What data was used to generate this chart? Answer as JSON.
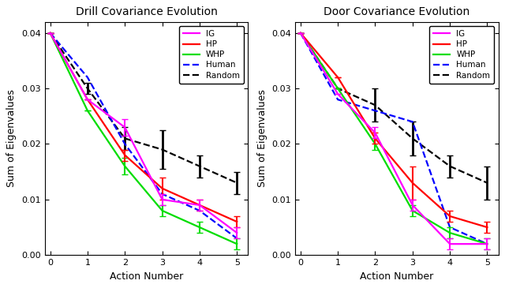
{
  "drill": {
    "title": "Drill Covariance Evolution",
    "IG": [
      0.04,
      0.028,
      0.023,
      0.01,
      0.009,
      0.004
    ],
    "HP": [
      0.04,
      0.028,
      0.018,
      0.012,
      0.009,
      0.006
    ],
    "WHP": [
      0.04,
      0.026,
      0.016,
      0.008,
      0.005,
      0.002
    ],
    "Human": [
      0.04,
      0.032,
      0.02,
      0.011,
      0.008,
      0.003
    ],
    "Random": [
      0.04,
      0.03,
      0.021,
      0.019,
      0.016,
      0.013
    ],
    "IG_err": [
      0,
      0,
      0.0015,
      0.001,
      0.001,
      0.001
    ],
    "HP_err": [
      0,
      0,
      0.001,
      0.002,
      0.001,
      0.001
    ],
    "WHP_err": [
      0,
      0,
      0.0015,
      0.001,
      0.001,
      0.001
    ],
    "Human_err": [
      0,
      0,
      0,
      0,
      0,
      0
    ],
    "Random_err": [
      0,
      0.001,
      0.002,
      0.0035,
      0.002,
      0.002
    ]
  },
  "door": {
    "title": "Door Covariance Evolution",
    "IG": [
      0.04,
      0.029,
      0.022,
      0.009,
      0.002,
      0.002
    ],
    "HP": [
      0.04,
      0.032,
      0.021,
      0.013,
      0.007,
      0.005
    ],
    "WHP": [
      0.04,
      0.03,
      0.02,
      0.008,
      0.004,
      0.002
    ],
    "Human": [
      0.04,
      0.028,
      0.026,
      0.024,
      0.005,
      0.002
    ],
    "Random": [
      0.04,
      0.03,
      0.027,
      0.021,
      0.016,
      0.013
    ],
    "IG_err": [
      0,
      0,
      0.001,
      0.001,
      0.001,
      0.001
    ],
    "HP_err": [
      0,
      0,
      0.001,
      0.003,
      0.001,
      0.001
    ],
    "WHP_err": [
      0,
      0,
      0.001,
      0.001,
      0.001,
      0.001
    ],
    "Human_err": [
      0,
      0,
      0,
      0,
      0,
      0
    ],
    "Random_err": [
      0,
      0,
      0.003,
      0.003,
      0.002,
      0.003
    ]
  },
  "colors": {
    "IG": "#ff00ff",
    "HP": "#ff0000",
    "WHP": "#00dd00",
    "Human": "#0000ff",
    "Random": "#000000"
  },
  "xlabel": "Action Number",
  "ylabel": "Sum of Eigenvalues",
  "ylim": [
    0,
    0.042
  ],
  "xlim": [
    -0.15,
    5.3
  ],
  "yticks": [
    0,
    0.01,
    0.02,
    0.03,
    0.04
  ],
  "xticks": [
    0,
    1,
    2,
    3,
    4,
    5
  ]
}
